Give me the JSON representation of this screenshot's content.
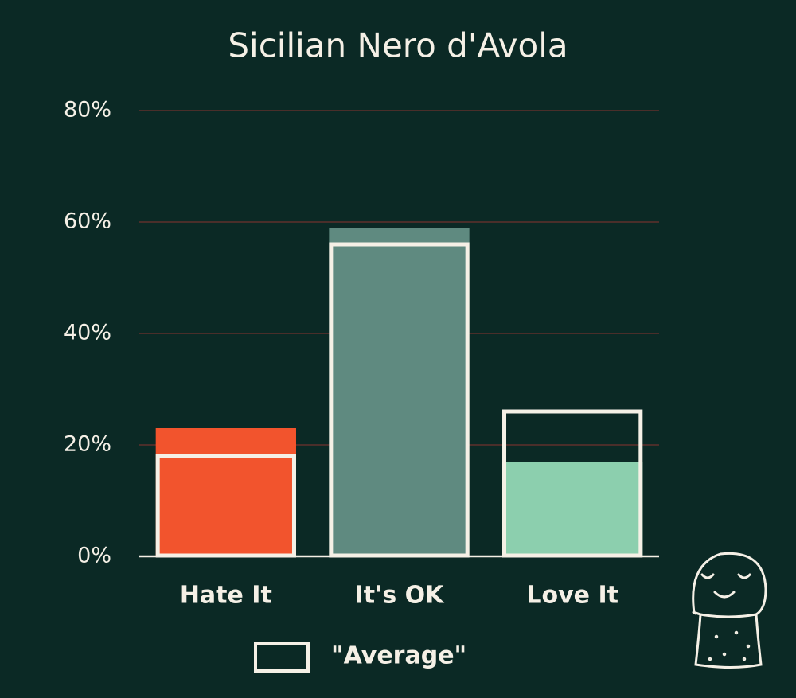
{
  "chart_data": {
    "type": "bar",
    "title": "Sicilian Nero d'Avola",
    "categories": [
      "Hate It",
      "It's OK",
      "Love It"
    ],
    "series": [
      {
        "colors": [
          "#f2542d",
          "#5f8a80",
          "#8ccfae"
        ],
        "values": [
          23,
          59,
          17
        ]
      },
      {
        "name": "\"Average\"",
        "color": "#f5f0e6",
        "style": "outline",
        "values": [
          18,
          56,
          26
        ]
      }
    ],
    "ylim": [
      0,
      80
    ],
    "yticks": [
      {
        "value": 0,
        "label": "0%"
      },
      {
        "value": 20,
        "label": "20%"
      },
      {
        "value": 40,
        "label": "40%"
      },
      {
        "value": 60,
        "label": "60%"
      },
      {
        "value": 80,
        "label": "80%"
      }
    ],
    "grid": true
  }
}
